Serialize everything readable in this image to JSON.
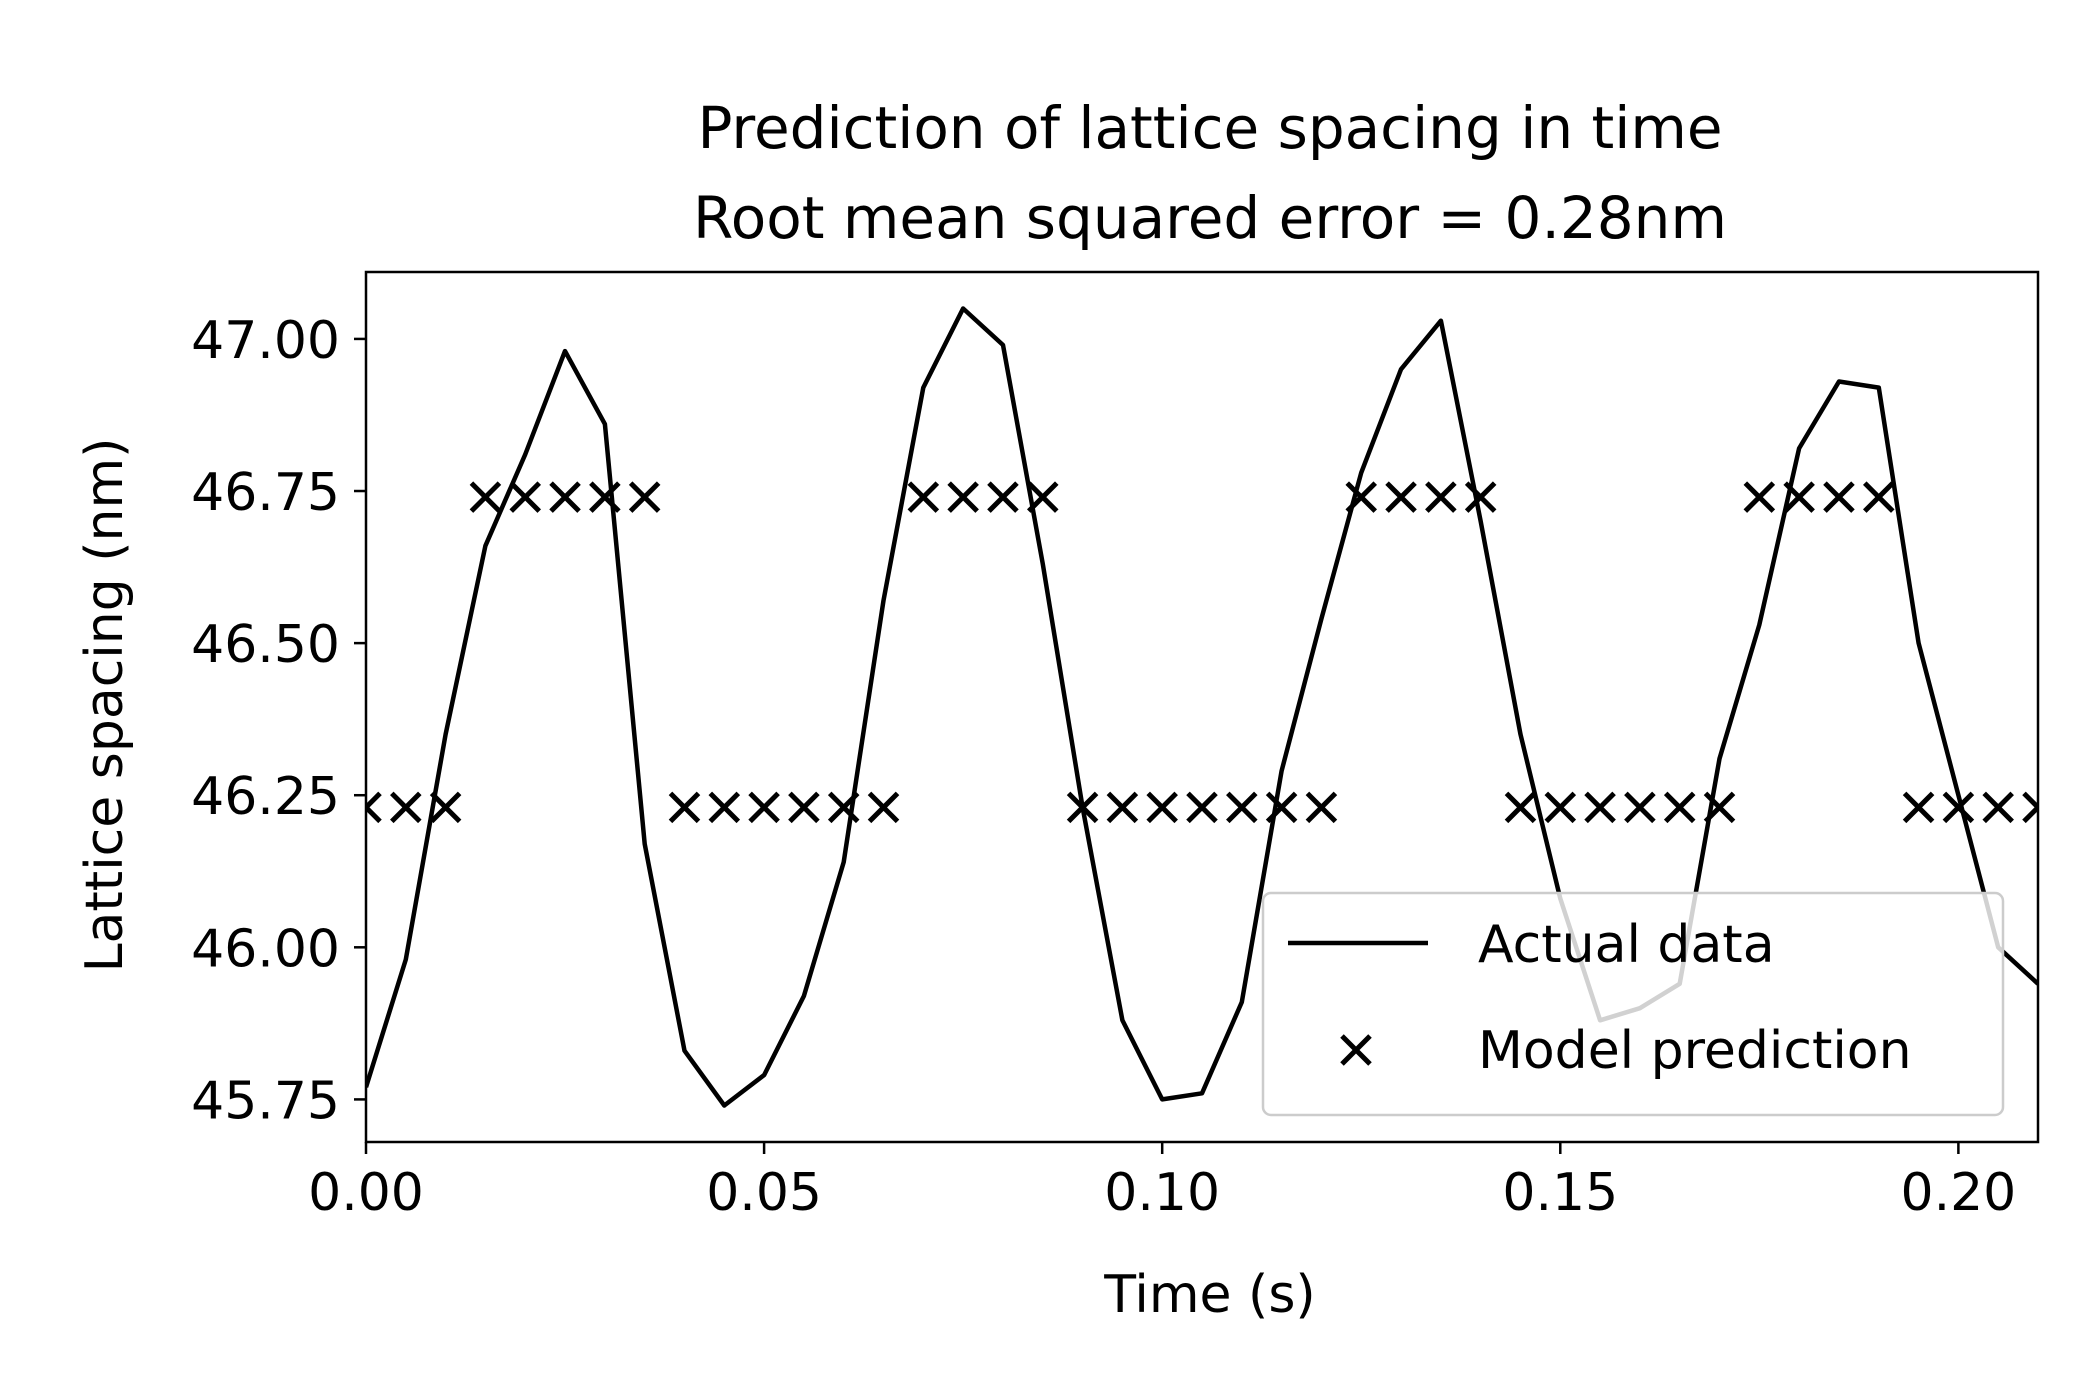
{
  "chart_data": {
    "type": "line",
    "title": "Prediction of lattice spacing in time",
    "subtitle": "Root mean squared error = 0.28nm",
    "xlabel": "Time (s)",
    "ylabel": "Lattice spacing (nm)",
    "xlim": [
      0.0,
      0.21
    ],
    "ylim": [
      45.68,
      47.11
    ],
    "x_ticks": [
      0.0,
      0.05,
      0.1,
      0.15,
      0.2
    ],
    "x_tick_labels": [
      "0.00",
      "0.05",
      "0.10",
      "0.15",
      "0.20"
    ],
    "y_ticks": [
      45.75,
      46.0,
      46.25,
      46.5,
      46.75,
      47.0
    ],
    "y_tick_labels": [
      "45.75",
      "46.00",
      "46.25",
      "46.50",
      "46.75",
      "47.00"
    ],
    "grid": false,
    "legend": {
      "position": "lower-right",
      "entries": [
        {
          "label": "Actual data",
          "marker": "line"
        },
        {
          "label": "Model prediction",
          "marker": "x"
        }
      ]
    },
    "series": [
      {
        "name": "Actual data",
        "kind": "line",
        "color": "#000000",
        "x": [
          0.0,
          0.005,
          0.01,
          0.015,
          0.02,
          0.025,
          0.03,
          0.035,
          0.04,
          0.045,
          0.05,
          0.055,
          0.06,
          0.065,
          0.07,
          0.075,
          0.08,
          0.085,
          0.09,
          0.095,
          0.1,
          0.105,
          0.11,
          0.115,
          0.12,
          0.125,
          0.13,
          0.135,
          0.14,
          0.145,
          0.15,
          0.155,
          0.16,
          0.165,
          0.17,
          0.175,
          0.18,
          0.185,
          0.19,
          0.195,
          0.2,
          0.205,
          0.21
        ],
        "y": [
          45.77,
          45.98,
          46.35,
          46.66,
          46.81,
          46.98,
          46.86,
          46.17,
          45.83,
          45.74,
          45.79,
          45.92,
          46.14,
          46.57,
          46.92,
          47.05,
          46.99,
          46.63,
          46.23,
          45.88,
          45.75,
          45.76,
          45.91,
          46.29,
          46.54,
          46.78,
          46.95,
          47.03,
          46.7,
          46.35,
          46.08,
          45.88,
          45.9,
          45.94,
          46.31,
          46.53,
          46.82,
          46.93,
          46.92,
          46.5,
          46.25,
          46.0,
          45.94
        ]
      },
      {
        "name": "Model prediction",
        "kind": "scatter",
        "marker": "x",
        "color": "#000000",
        "x": [
          0.0,
          0.005,
          0.01,
          0.015,
          0.02,
          0.025,
          0.03,
          0.035,
          0.04,
          0.045,
          0.05,
          0.055,
          0.06,
          0.065,
          0.07,
          0.075,
          0.08,
          0.085,
          0.09,
          0.095,
          0.1,
          0.105,
          0.11,
          0.115,
          0.12,
          0.125,
          0.13,
          0.135,
          0.14,
          0.145,
          0.15,
          0.155,
          0.16,
          0.165,
          0.17,
          0.175,
          0.18,
          0.185,
          0.19,
          0.195,
          0.2,
          0.205,
          0.21
        ],
        "y": [
          46.23,
          46.23,
          46.23,
          46.74,
          46.74,
          46.74,
          46.74,
          46.74,
          46.23,
          46.23,
          46.23,
          46.23,
          46.23,
          46.23,
          46.74,
          46.74,
          46.74,
          46.74,
          46.23,
          46.23,
          46.23,
          46.23,
          46.23,
          46.23,
          46.23,
          46.74,
          46.74,
          46.74,
          46.74,
          46.23,
          46.23,
          46.23,
          46.23,
          46.23,
          46.23,
          46.74,
          46.74,
          46.74,
          46.74,
          46.23,
          46.23,
          46.23,
          46.23
        ]
      }
    ]
  }
}
